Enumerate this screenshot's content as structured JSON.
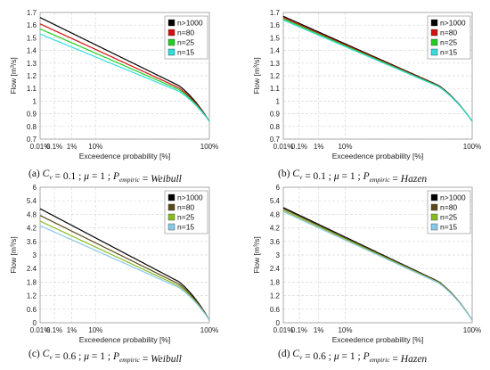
{
  "colors": {
    "grid": "#d9d9d9",
    "frame": "#9a9a9a"
  },
  "chart_data": [
    {
      "type": "line",
      "caption": {
        "label": "(a)",
        "cv": "0.1",
        "mu": "1",
        "method": "Weibull"
      },
      "xlabel": "Exceedence probability [%]",
      "ylabel": "Flow [m³/s]",
      "xscale": "probability",
      "x_ticks": [
        "0.01%",
        "0.1%",
        "1%",
        "10%",
        "100%"
      ],
      "y_ticks": [
        "0.7",
        "0.8",
        "0.9",
        "1",
        "1.1",
        "1.2",
        "1.3",
        "1.4",
        "1.5",
        "1.6",
        "1.7"
      ],
      "ylim": [
        0.7,
        1.7
      ],
      "grid": true,
      "legend": "top-right",
      "series": [
        {
          "name": "n>1000",
          "color": "#000000",
          "y_at_0.01pct": 1.66
        },
        {
          "name": "n=80",
          "color": "#d21010",
          "y_at_0.01pct": 1.61
        },
        {
          "name": "n=25",
          "color": "#22cc22",
          "y_at_0.01pct": 1.57
        },
        {
          "name": "n=15",
          "color": "#33dddd",
          "y_at_0.01pct": 1.53
        }
      ]
    },
    {
      "type": "line",
      "caption": {
        "label": "(b)",
        "cv": "0.1",
        "mu": "1",
        "method": "Hazen"
      },
      "xlabel": "Exceedence probability [%]",
      "ylabel": "Flow [m³/s]",
      "xscale": "probability",
      "x_ticks": [
        "0.01%",
        "0.1%",
        "1%",
        "10%",
        "100%"
      ],
      "y_ticks": [
        "0.7",
        "0.8",
        "0.9",
        "1",
        "1.1",
        "1.2",
        "1.3",
        "1.4",
        "1.5",
        "1.6",
        "1.7"
      ],
      "ylim": [
        0.7,
        1.7
      ],
      "grid": true,
      "legend": "top-right",
      "series": [
        {
          "name": "n>1000",
          "color": "#000000",
          "y_at_0.01pct": 1.67
        },
        {
          "name": "n=80",
          "color": "#d21010",
          "y_at_0.01pct": 1.66
        },
        {
          "name": "n=25",
          "color": "#22cc22",
          "y_at_0.01pct": 1.65
        },
        {
          "name": "n=15",
          "color": "#33dddd",
          "y_at_0.01pct": 1.64
        }
      ]
    },
    {
      "type": "line",
      "caption": {
        "label": "(c)",
        "cv": "0.6",
        "mu": "1",
        "method": "Weibull"
      },
      "xlabel": "Exceedence probability [%]",
      "ylabel": "Flow [m³/s]",
      "xscale": "probability",
      "x_ticks": [
        "0.01%",
        "0.1%",
        "1%",
        "10%",
        "100%"
      ],
      "y_ticks": [
        "0",
        "0.6",
        "1.2",
        "1.8",
        "2.4",
        "3",
        "3.6",
        "4.2",
        "4.8",
        "5.4",
        "6"
      ],
      "ylim": [
        0,
        6
      ],
      "grid": true,
      "legend": "top-right",
      "series": [
        {
          "name": "n>1000",
          "color": "#000000",
          "y_at_0.01pct": 5.05
        },
        {
          "name": "n=80",
          "color": "#5a4a1a",
          "y_at_0.01pct": 4.75
        },
        {
          "name": "n=25",
          "color": "#88bb22",
          "y_at_0.01pct": 4.5
        },
        {
          "name": "n=15",
          "color": "#88c8e8",
          "y_at_0.01pct": 4.3
        }
      ]
    },
    {
      "type": "line",
      "caption": {
        "label": "(d)",
        "cv": "0.6",
        "mu": "1",
        "method": "Hazen"
      },
      "xlabel": "Exceedence probability [%]",
      "ylabel": "Flow [m³/s]",
      "xscale": "probability",
      "x_ticks": [
        "0.01%",
        "0.1%",
        "1%",
        "10%",
        "100%"
      ],
      "y_ticks": [
        "0",
        "0.6",
        "1.2",
        "1.8",
        "2.4",
        "3",
        "3.6",
        "4.2",
        "4.8",
        "5.4",
        "6"
      ],
      "ylim": [
        0,
        6
      ],
      "grid": true,
      "legend": "top-right",
      "series": [
        {
          "name": "n>1000",
          "color": "#000000",
          "y_at_0.01pct": 5.1
        },
        {
          "name": "n=80",
          "color": "#5a4a1a",
          "y_at_0.01pct": 5.05
        },
        {
          "name": "n=25",
          "color": "#88bb22",
          "y_at_0.01pct": 4.98
        },
        {
          "name": "n=15",
          "color": "#88c8e8",
          "y_at_0.01pct": 4.92
        }
      ]
    }
  ]
}
